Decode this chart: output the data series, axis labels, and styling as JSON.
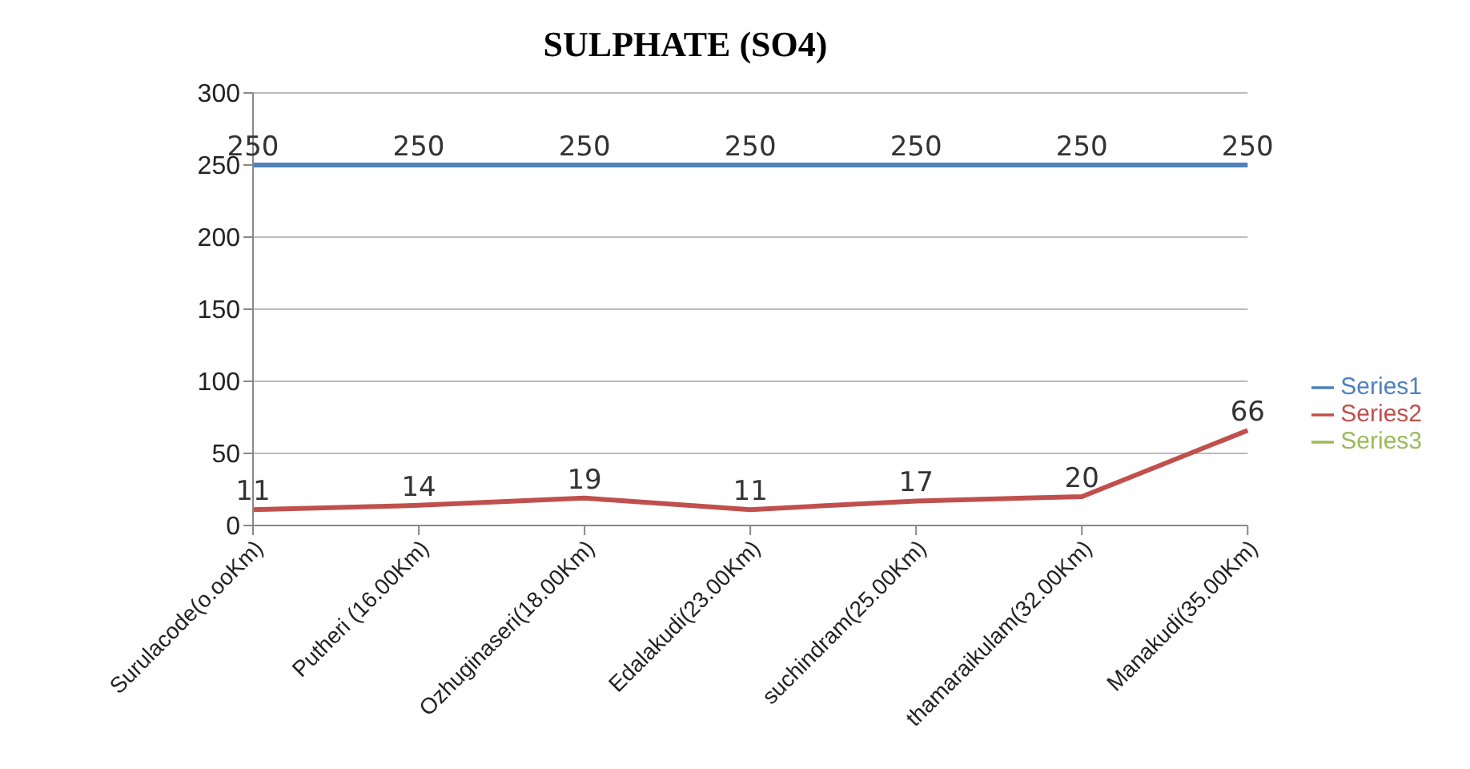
{
  "chart_data": {
    "type": "line",
    "title": "SULPHATE  (SO4)",
    "categories": [
      "Surulacode(o.ooKm)",
      "Putheri (16.00Km)",
      "Ozhuginaseri(18.00Km)",
      "Edalakudi(23.00Km)",
      "suchindram(25.00Km)",
      "thamaraikulam(32.00Km)",
      "Manakudi(35.00Km)"
    ],
    "series": [
      {
        "name": "Series1",
        "color": "#4f81bd",
        "values": [
          250,
          250,
          250,
          250,
          250,
          250,
          250
        ]
      },
      {
        "name": "Series2",
        "color": "#c0504d",
        "values": [
          11,
          14,
          19,
          11,
          17,
          20,
          66
        ]
      },
      {
        "name": "Series3",
        "color": "#9bbb59",
        "values": [
          null,
          null,
          null,
          null,
          null,
          null,
          null
        ]
      }
    ],
    "ylim": [
      0,
      300
    ],
    "yticks": [
      0,
      50,
      100,
      150,
      200,
      250,
      300
    ],
    "grid": "y",
    "legend": "right",
    "data_labels": true,
    "marker": "none",
    "line_style": "solid"
  }
}
